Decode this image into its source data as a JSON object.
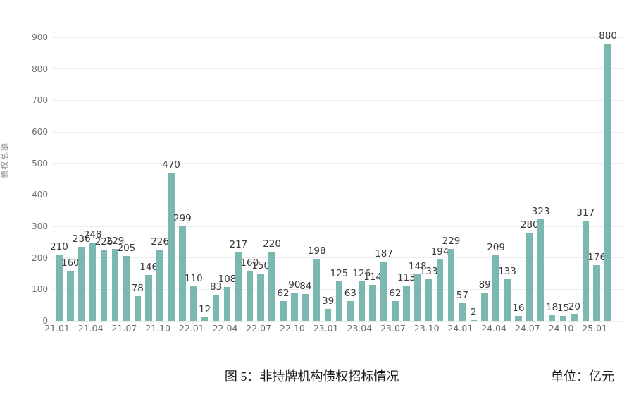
{
  "caption": {
    "title": "图 5：非持牌机构债权招标情况",
    "unit": "单位：亿元"
  },
  "chart_data": {
    "type": "bar",
    "title": "图 5：非持牌机构债权招标情况",
    "unit_label": "单位：亿元",
    "ylabel": "债权总额",
    "xlabel": "",
    "ylim": [
      0,
      900
    ],
    "ytick_step": 100,
    "yticks": [
      0,
      100,
      200,
      300,
      400,
      500,
      600,
      700,
      800,
      900
    ],
    "grid": true,
    "legend": "none",
    "bar_color": "#7ab8b1",
    "xtick_every": 3,
    "x": [
      "21.01",
      "21.02",
      "21.03",
      "21.04",
      "21.05",
      "21.06",
      "21.07",
      "21.08",
      "21.09",
      "21.10",
      "21.11",
      "21.12",
      "22.01",
      "22.02",
      "22.03",
      "22.04",
      "22.05",
      "22.06",
      "22.07",
      "22.08",
      "22.09",
      "22.10",
      "22.11",
      "22.12",
      "23.01",
      "23.02",
      "23.03",
      "23.04",
      "23.05",
      "23.06",
      "23.07",
      "23.08",
      "23.09",
      "23.10",
      "23.11",
      "23.12",
      "24.01",
      "24.02",
      "24.03",
      "24.04",
      "24.05",
      "24.06",
      "24.07",
      "24.08",
      "24.09",
      "24.10",
      "24.11",
      "24.12",
      "25.01",
      "25.02"
    ],
    "values": [
      210,
      160,
      236,
      248,
      226,
      229,
      205,
      78,
      146,
      226,
      470,
      299,
      110,
      12,
      83,
      108,
      217,
      160,
      150,
      220,
      62,
      90,
      84,
      198,
      39,
      125,
      63,
      126,
      114,
      187,
      62,
      113,
      148,
      133,
      194,
      229,
      57,
      2,
      89,
      209,
      133,
      16,
      280,
      323,
      18,
      15,
      20,
      317,
      176,
      880
    ],
    "visible_xtick_labels": [
      "21.01",
      "21.04",
      "21.07",
      "21.10",
      "22.01",
      "22.04",
      "22.07",
      "22.10",
      "23.01",
      "23.04",
      "23.07",
      "23.10",
      "24.01",
      "24.04",
      "24.07",
      "24.10",
      "25.01"
    ]
  }
}
